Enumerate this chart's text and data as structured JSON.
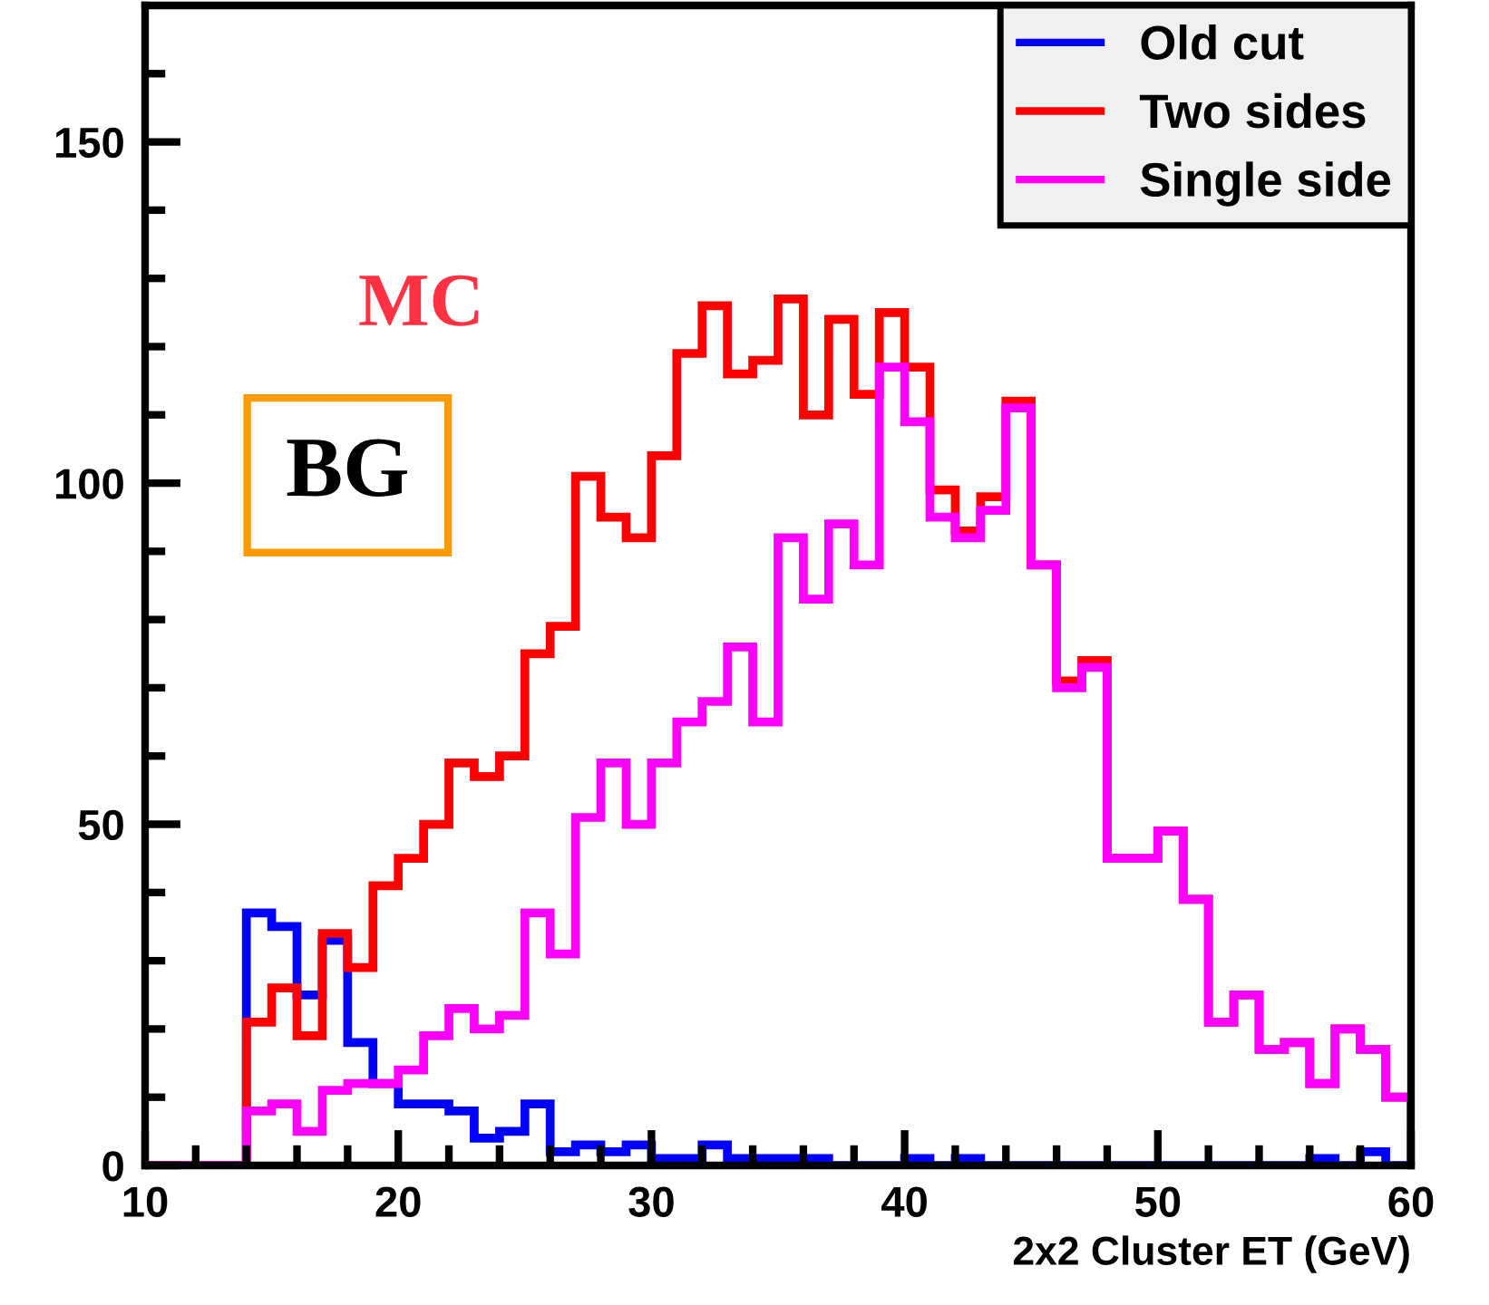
{
  "chart_data": {
    "type": "histogram",
    "xlabel": "2x2 Cluster ET (GeV)",
    "bins": [
      10,
      11,
      12,
      13,
      14,
      15,
      16,
      17,
      18,
      19,
      20,
      21,
      22,
      23,
      24,
      25,
      26,
      27,
      28,
      29,
      30,
      31,
      32,
      33,
      34,
      35,
      36,
      37,
      38,
      39,
      40,
      41,
      42,
      43,
      44,
      45,
      46,
      47,
      48,
      49,
      50,
      51,
      52,
      53,
      54,
      55,
      56,
      57,
      58,
      59,
      60
    ],
    "series": [
      {
        "name": "Old cut",
        "color": "#0000ff",
        "values": [
          0,
          0,
          0,
          0,
          37,
          35,
          25,
          33,
          18,
          12,
          9,
          9,
          8,
          4,
          5,
          9,
          2,
          3,
          2,
          3,
          1,
          1,
          3,
          1,
          1,
          1,
          1,
          0,
          0,
          0,
          1,
          0,
          1,
          0,
          0,
          0,
          0,
          0,
          0,
          0,
          0,
          0,
          0,
          0,
          0,
          0,
          1,
          0,
          2,
          0
        ]
      },
      {
        "name": "Two sides",
        "color": "#ff0000",
        "values": [
          0,
          0,
          0,
          0,
          21,
          26,
          19,
          34,
          29,
          41,
          45,
          50,
          59,
          57,
          60,
          75,
          79,
          101,
          95,
          92,
          104,
          119,
          126,
          116,
          118,
          127,
          110,
          124,
          113,
          125,
          117,
          99,
          93,
          98,
          112,
          88,
          71,
          74,
          45,
          45,
          49,
          39,
          21,
          25,
          17,
          18,
          12,
          20,
          17,
          10
        ]
      },
      {
        "name": "Single side",
        "color": "#ff00ff",
        "values": [
          0,
          0,
          0,
          0,
          8,
          9,
          5,
          11,
          12,
          12,
          14,
          19,
          23,
          20,
          22,
          37,
          31,
          51,
          59,
          50,
          59,
          65,
          68,
          76,
          65,
          92,
          83,
          94,
          88,
          117,
          109,
          95,
          92,
          96,
          111,
          88,
          70,
          73,
          45,
          45,
          49,
          39,
          21,
          25,
          17,
          18,
          12,
          20,
          17,
          10
        ]
      }
    ],
    "xlim": [
      10,
      60
    ],
    "xticks": [
      10,
      {
        "value": 12,
        "label": null
      },
      {
        "value": 14,
        "label": null
      },
      {
        "value": 16,
        "label": null
      },
      {
        "value": 18,
        "label": null
      },
      20,
      {
        "value": 22,
        "label": null
      },
      {
        "value": 24,
        "label": null
      },
      {
        "value": 26,
        "label": null
      },
      {
        "value": 28,
        "label": null
      },
      30,
      {
        "value": 32,
        "label": null
      },
      {
        "value": 34,
        "label": null
      },
      {
        "value": 36,
        "label": null
      },
      {
        "value": 38,
        "label": null
      },
      40,
      {
        "value": 42,
        "label": null
      },
      {
        "value": 44,
        "label": null
      },
      {
        "value": 46,
        "label": null
      },
      {
        "value": 48,
        "label": null
      },
      50,
      {
        "value": 52,
        "label": null
      },
      {
        "value": 54,
        "label": null
      },
      {
        "value": 56,
        "label": null
      },
      {
        "value": 58,
        "label": null
      },
      60
    ],
    "ylim": [
      0,
      170
    ],
    "yticks": [
      0,
      {
        "value": 10,
        "label": null
      },
      {
        "value": 20,
        "label": null
      },
      {
        "value": 30,
        "label": null
      },
      {
        "value": 40,
        "label": null
      },
      50,
      {
        "value": 60,
        "label": null
      },
      {
        "value": 70,
        "label": null
      },
      {
        "value": 80,
        "label": null
      },
      {
        "value": 90,
        "label": null
      },
      100,
      {
        "value": 110,
        "label": null
      },
      {
        "value": 120,
        "label": null
      },
      {
        "value": 130,
        "label": null
      },
      {
        "value": 140,
        "label": null
      },
      150,
      {
        "value": 160,
        "label": null
      }
    ],
    "legend": "top right",
    "grid": false,
    "annotations": [
      "MC",
      "BG"
    ]
  }
}
